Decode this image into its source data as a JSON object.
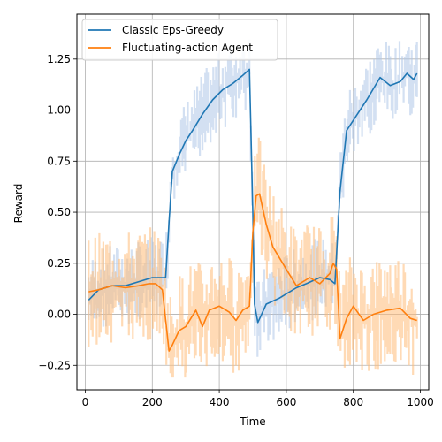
{
  "chart_data": {
    "type": "line",
    "title": "",
    "xlabel": "Time",
    "ylabel": "Reward",
    "xlim": [
      -25,
      1025
    ],
    "ylim": [
      -0.37,
      1.47
    ],
    "xticks": [
      0,
      200,
      400,
      600,
      800,
      1000
    ],
    "xtick_labels": [
      "0",
      "200",
      "400",
      "600",
      "800",
      "1000"
    ],
    "yticks": [
      -0.25,
      0.0,
      0.25,
      0.5,
      0.75,
      1.0,
      1.25
    ],
    "ytick_labels": [
      "−0.25",
      "0.00",
      "0.25",
      "0.50",
      "0.75",
      "1.00",
      "1.25"
    ],
    "grid": true,
    "legend_position": "top-left",
    "series": [
      {
        "name": "Classic Eps-Greedy",
        "color": "#1f77b4",
        "band_color": "#aec7e8",
        "x": [
          10,
          40,
          80,
          120,
          160,
          200,
          240,
          250,
          260,
          280,
          300,
          320,
          350,
          380,
          410,
          440,
          470,
          490,
          500,
          505,
          515,
          540,
          580,
          600,
          630,
          660,
          700,
          730,
          745,
          760,
          780,
          800,
          840,
          880,
          910,
          940,
          960,
          980,
          990
        ],
        "y": [
          0.07,
          0.12,
          0.14,
          0.14,
          0.16,
          0.18,
          0.18,
          0.45,
          0.7,
          0.78,
          0.85,
          0.9,
          0.98,
          1.05,
          1.1,
          1.13,
          1.17,
          1.2,
          0.5,
          0.05,
          -0.04,
          0.05,
          0.08,
          0.1,
          0.13,
          0.15,
          0.18,
          0.17,
          0.15,
          0.6,
          0.9,
          0.95,
          1.05,
          1.16,
          1.12,
          1.14,
          1.18,
          1.15,
          1.18
        ]
      },
      {
        "name": "Fluctuating-action Agent",
        "color": "#ff7f0e",
        "band_color": "#ffbb78",
        "x": [
          10,
          40,
          80,
          120,
          160,
          190,
          210,
          230,
          250,
          260,
          280,
          300,
          330,
          350,
          370,
          400,
          430,
          450,
          470,
          490,
          500,
          510,
          520,
          540,
          560,
          600,
          630,
          670,
          700,
          730,
          740,
          750,
          760,
          780,
          800,
          830,
          860,
          900,
          940,
          970,
          990
        ],
        "y": [
          0.11,
          0.12,
          0.14,
          0.13,
          0.14,
          0.15,
          0.15,
          0.12,
          -0.18,
          -0.15,
          -0.08,
          -0.06,
          0.02,
          -0.06,
          0.02,
          0.04,
          0.01,
          -0.03,
          0.02,
          0.04,
          0.4,
          0.58,
          0.59,
          0.44,
          0.33,
          0.22,
          0.14,
          0.18,
          0.15,
          0.2,
          0.25,
          0.22,
          -0.12,
          -0.02,
          0.04,
          -0.03,
          0.0,
          0.02,
          0.03,
          -0.02,
          -0.03
        ]
      }
    ]
  }
}
